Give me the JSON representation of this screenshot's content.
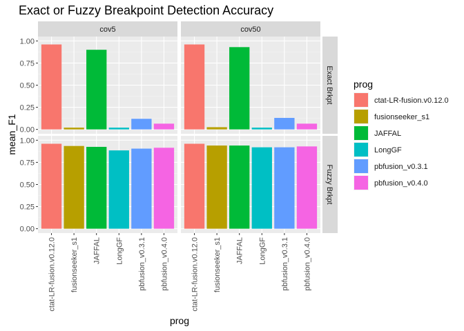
{
  "chart_data": {
    "type": "bar",
    "title": "Exact or Fuzzy Breakpoint Detection Accuracy",
    "xlabel": "prog",
    "ylabel": "mean_F1",
    "ylim": [
      0,
      1
    ],
    "yticks": [
      "0.00",
      "0.25",
      "0.50",
      "0.75",
      "1.00"
    ],
    "grid": true,
    "legend_position": "right",
    "legend_title": "prog",
    "categories": [
      "ctat-LR-fusion.v0.12.0",
      "fusionseeker_s1",
      "JAFFAL",
      "LongGF",
      "pbfusion_v0.3.1",
      "pbfusion_v0.4.0"
    ],
    "colors": [
      "#F8766D",
      "#B79F00",
      "#00BA38",
      "#00BFC4",
      "#619CFF",
      "#F564E3"
    ],
    "col_facets": [
      "cov5",
      "cov50"
    ],
    "row_facets": [
      "Exact Brkpt",
      "Fuzzy Brkpt"
    ],
    "panels": [
      {
        "col": "cov5",
        "row": "Exact Brkpt",
        "values": [
          0.96,
          0.02,
          0.9,
          0.02,
          0.12,
          0.065
        ]
      },
      {
        "col": "cov50",
        "row": "Exact Brkpt",
        "values": [
          0.96,
          0.025,
          0.93,
          0.02,
          0.13,
          0.065
        ]
      },
      {
        "col": "cov5",
        "row": "Fuzzy Brkpt",
        "values": [
          0.96,
          0.935,
          0.925,
          0.885,
          0.905,
          0.915
        ]
      },
      {
        "col": "cov50",
        "row": "Fuzzy Brkpt",
        "values": [
          0.96,
          0.94,
          0.94,
          0.92,
          0.92,
          0.93
        ]
      }
    ]
  }
}
